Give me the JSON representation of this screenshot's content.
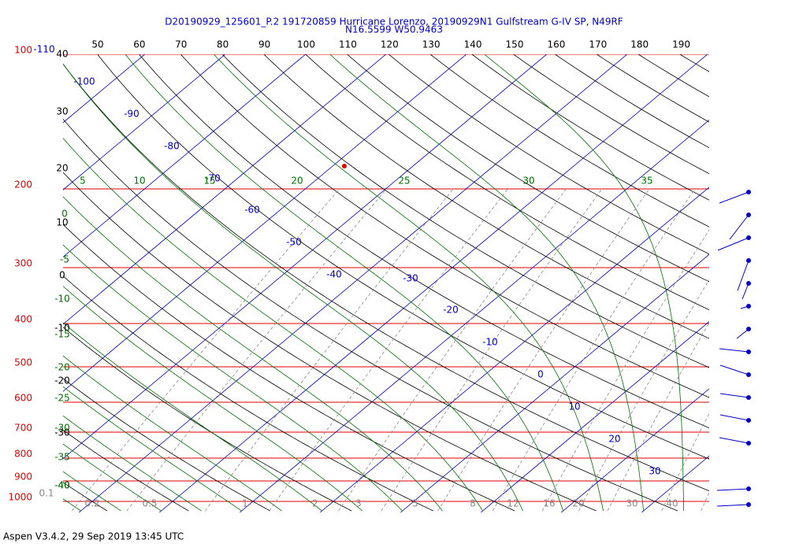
{
  "title": "D20190929_125601_P.2 191720859 Hurricane Lorenzo, 20190929N1 Gulfstream G-IV SP, N49RF",
  "subtitle": "N16.5599 W50.9463",
  "footer": "Aspen V3.4.2, 29 Sep 2019  13:45 UTC",
  "pressure_levels": [
    100,
    200,
    300,
    400,
    500,
    600,
    700,
    800,
    900,
    1000
  ],
  "isotherm_labels": [
    -110,
    -100,
    -90,
    -80,
    -70,
    -60,
    -50,
    -40,
    -30,
    -20,
    -10,
    0,
    10,
    20,
    30
  ],
  "dry_adiabat_top_labels": [
    50,
    60,
    70,
    80,
    90,
    100,
    110,
    120,
    130,
    140,
    150,
    160,
    170,
    180,
    190
  ],
  "dry_adiabat_left_labels": [
    40,
    30,
    20,
    10,
    0,
    -10,
    -20,
    -30,
    -40
  ],
  "moist_adiabat_left_labels": [
    0,
    -5,
    -10,
    -15,
    -20,
    -25,
    -30,
    -35,
    -40
  ],
  "moist_adiabat_top_labels": [
    5,
    10,
    15,
    20,
    25,
    30,
    35
  ],
  "mixing_ratio_labels": [
    0.1,
    0.2,
    0.5,
    1,
    2,
    3,
    5,
    8,
    12,
    16,
    20,
    30,
    40
  ]
}
